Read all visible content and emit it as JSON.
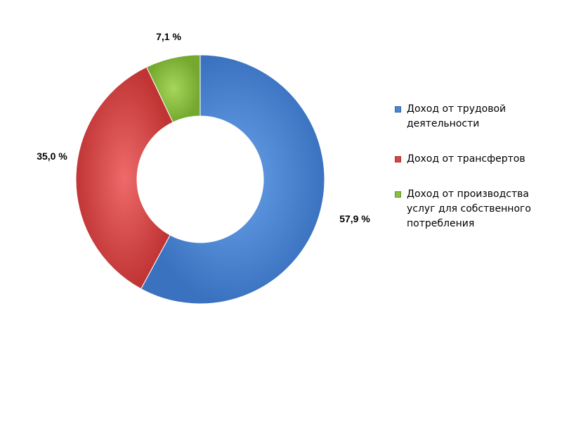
{
  "chart_data": {
    "type": "pie",
    "variant": "donut",
    "title": "",
    "categories": [
      "Доход от трудовой деятельности",
      "Доход от трансфертов",
      "Доход от производства услуг для собственного потребления"
    ],
    "values": [
      57.9,
      35.0,
      7.1
    ],
    "data_labels": [
      "57,9 %",
      "35,0 %",
      "7,1 %"
    ],
    "colors": [
      "#4a86d4",
      "#d94545",
      "#8cbf3f"
    ],
    "legend_position": "right",
    "start_angle_deg": 0,
    "direction": "clockwise"
  }
}
